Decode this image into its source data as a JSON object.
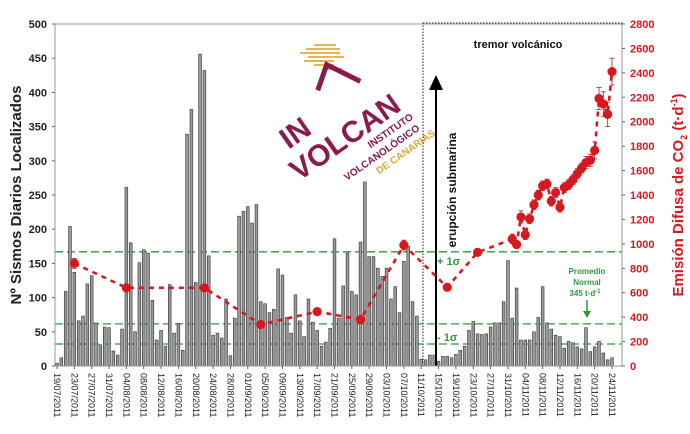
{
  "chart_data": {
    "type": "bar+line",
    "left_axis": {
      "label": "Nº Sismos Diarios Localizados",
      "range": [
        0,
        500
      ],
      "ticks": [
        "0",
        "50",
        "100",
        "150",
        "200",
        "250",
        "300",
        "350",
        "400",
        "450",
        "500"
      ]
    },
    "right_axis": {
      "label_parts": [
        "Emisión Difusa de CO",
        "2",
        " (t·d",
        "-1",
        ")"
      ],
      "range": [
        0,
        2800
      ],
      "ticks": [
        "0",
        "200",
        "400",
        "600",
        "800",
        "1000",
        "1200",
        "1400",
        "1600",
        "1800",
        "2000",
        "2200",
        "2400",
        "2600",
        "2800"
      ],
      "color": "#d7191f"
    },
    "x_ticks": [
      "19/07/2011",
      "23/07/2011",
      "27/07/2011",
      "31/07/2011",
      "04/08/2011",
      "08/08/2011",
      "12/08/2011",
      "16/08/2011",
      "20/08/2011",
      "24/08/2011",
      "28/08/2011",
      "01/09/2011",
      "05/09/2011",
      "09/09/2011",
      "13/09/2011",
      "17/09/2011",
      "21/09/2011",
      "25/09/2011",
      "29/09/2011",
      "03/10/2011",
      "07/10/2011",
      "11/10/2011",
      "15/10/2011",
      "19/10/2011",
      "23/10/2011",
      "27/10/2011",
      "31/10/2011",
      "04/11/2011",
      "08/11/2011",
      "12/11/2011",
      "16/11/2011",
      "20/11/2011",
      "24/11/2011"
    ],
    "earthquakes": {
      "axis": "left",
      "color": "#8c8c8c",
      "dates": [
        "19/07",
        "20/07",
        "21/07",
        "22/07",
        "23/07",
        "24/07",
        "25/07",
        "26/07",
        "27/07",
        "28/07",
        "29/07",
        "30/07",
        "31/07",
        "01/08",
        "02/08",
        "03/08",
        "04/08",
        "05/08",
        "06/08",
        "07/08",
        "08/08",
        "09/08",
        "10/08",
        "11/08",
        "12/08",
        "13/08",
        "14/08",
        "15/08",
        "16/08",
        "17/08",
        "18/08",
        "19/08",
        "20/08",
        "21/08",
        "22/08",
        "23/08",
        "24/08",
        "25/08",
        "26/08",
        "27/08",
        "28/08",
        "29/08",
        "30/08",
        "31/08",
        "01/09",
        "02/09",
        "03/09",
        "04/09",
        "05/09",
        "06/09",
        "07/09",
        "08/09",
        "09/09",
        "10/09",
        "11/09",
        "12/09",
        "13/09",
        "14/09",
        "15/09",
        "16/09",
        "17/09",
        "18/09",
        "19/09",
        "20/09",
        "21/09",
        "22/09",
        "23/09",
        "24/09",
        "25/09",
        "26/09",
        "27/09",
        "28/09",
        "29/09",
        "30/09",
        "01/10",
        "02/10",
        "03/10",
        "04/10",
        "05/10",
        "06/10",
        "07/10",
        "08/10",
        "09/10",
        "10/10",
        "11/10",
        "12/10",
        "13/10",
        "14/10",
        "15/10",
        "16/10",
        "17/10",
        "18/10",
        "19/10",
        "20/10",
        "21/10",
        "22/10",
        "23/10",
        "24/10",
        "25/10",
        "26/10",
        "27/10",
        "28/10",
        "29/10",
        "30/10",
        "31/10",
        "01/11",
        "02/11",
        "03/11",
        "04/11",
        "05/11",
        "06/11",
        "07/11",
        "08/11",
        "09/11",
        "10/11",
        "11/11",
        "12/11",
        "13/11",
        "14/11",
        "15/11",
        "16/11",
        "17/11",
        "18/11",
        "19/11",
        "20/11",
        "21/11",
        "22/11",
        "23/11",
        "24/11"
      ],
      "values": [
        4,
        12,
        109,
        204,
        137,
        66,
        73,
        120,
        132,
        63,
        31,
        57,
        56,
        22,
        16,
        54,
        261,
        180,
        50,
        151,
        170,
        165,
        96,
        38,
        52,
        29,
        119,
        48,
        62,
        23,
        339,
        375,
        122,
        456,
        432,
        161,
        45,
        48,
        41,
        98,
        15,
        70,
        219,
        226,
        233,
        209,
        236,
        94,
        91,
        78,
        83,
        142,
        133,
        71,
        48,
        104,
        66,
        43,
        98,
        64,
        52,
        29,
        35,
        55,
        186,
        70,
        117,
        165,
        109,
        104,
        181,
        269,
        160,
        160,
        143,
        131,
        143,
        98,
        116,
        78,
        153,
        175,
        94,
        73,
        10,
        9,
        16,
        16,
        7,
        14,
        14,
        12,
        17,
        23,
        29,
        52,
        65,
        47,
        46,
        47,
        57,
        63,
        63,
        94,
        154,
        70,
        114,
        38,
        38,
        38,
        50,
        71,
        116,
        63,
        54,
        45,
        43,
        26,
        36,
        34,
        28,
        25,
        56,
        21,
        28,
        36,
        19,
        9,
        12
      ]
    },
    "co2_emission": {
      "axis": "right",
      "color": "#d7191f",
      "points": [
        {
          "date": "23/07",
          "value": 840,
          "error": 40
        },
        {
          "date": "04/08",
          "value": 640,
          "error": 20
        },
        {
          "date": "22/08",
          "value": 640,
          "error": 20
        },
        {
          "date": "04/09",
          "value": 340,
          "error": 20
        },
        {
          "date": "17/09",
          "value": 445,
          "error": 20
        },
        {
          "date": "27/09",
          "value": 380,
          "error": 20
        },
        {
          "date": "07/10",
          "value": 990,
          "error": 40
        },
        {
          "date": "17/10",
          "value": 645,
          "error": 20
        },
        {
          "date": "24/10",
          "value": 930,
          "error": 20
        },
        {
          "date": "01/11",
          "value": 1040,
          "error": 40
        },
        {
          "date": "02/11",
          "value": 995,
          "error": 30
        },
        {
          "date": "03/11",
          "value": 1220,
          "error": 50
        },
        {
          "date": "04/11",
          "value": 1075,
          "error": 40
        },
        {
          "date": "05/11",
          "value": 1205,
          "error": 40
        },
        {
          "date": "06/11",
          "value": 1320,
          "error": 40
        },
        {
          "date": "07/11",
          "value": 1400,
          "error": 40
        },
        {
          "date": "08/11",
          "value": 1475,
          "error": 40
        },
        {
          "date": "09/11",
          "value": 1490,
          "error": 40
        },
        {
          "date": "10/11",
          "value": 1350,
          "error": 40
        },
        {
          "date": "11/11",
          "value": 1420,
          "error": 40
        },
        {
          "date": "12/11",
          "value": 1300,
          "error": 40
        },
        {
          "date": "13/11",
          "value": 1460,
          "error": 40
        },
        {
          "date": "14/11",
          "value": 1485,
          "error": 40
        },
        {
          "date": "15/11",
          "value": 1525,
          "error": 40
        },
        {
          "date": "16/11",
          "value": 1575,
          "error": 40
        },
        {
          "date": "17/11",
          "value": 1620,
          "error": 40
        },
        {
          "date": "18/11",
          "value": 1665,
          "error": 50
        },
        {
          "date": "19/11",
          "value": 1685,
          "error": 50
        },
        {
          "date": "20/11",
          "value": 1765,
          "error": 70
        },
        {
          "date": "21/11",
          "value": 2190,
          "error": 90
        },
        {
          "date": "22/11",
          "value": 2145,
          "error": 100
        },
        {
          "date": "23/11",
          "value": 2060,
          "error": 100
        },
        {
          "date": "24/11",
          "value": 2410,
          "error": 110
        }
      ]
    },
    "reference_lines": {
      "color": "#2e9a3a",
      "plus_sigma": {
        "value": 935,
        "label": "+ 1σ"
      },
      "mean": {
        "value": 345
      },
      "minus_sigma": {
        "value": 180,
        "label": "- 1σ"
      }
    },
    "annotations": {
      "tremor": "tremor volcánico",
      "eruption": "erupción submarina",
      "eruption_date": "10/10",
      "mean_label": [
        "Promedio",
        "Normal",
        "345 t·d",
        "-1"
      ]
    },
    "grid": false,
    "legend": "none"
  },
  "logo": {
    "name": "INVOLCAN",
    "lines": [
      "IN",
      "VOLCAN",
      "INSTITUTO",
      "VOLCANOLÓGICO",
      "DE CANARIAS"
    ],
    "colors": {
      "purple": "#8b1a4e",
      "gold": "#e0a83a"
    }
  }
}
